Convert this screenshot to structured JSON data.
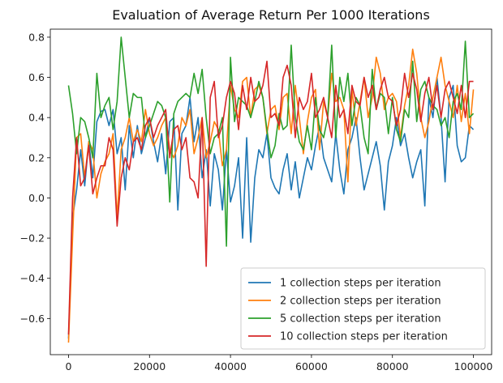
{
  "chart_data": {
    "type": "line",
    "title": "Evaluation of Average Return Per 1000 Iterations",
    "xlabel": "",
    "ylabel": "",
    "xlim": [
      -4500,
      104500
    ],
    "ylim": [
      -0.78,
      0.84
    ],
    "x_ticks": [
      0,
      20000,
      40000,
      60000,
      80000,
      100000
    ],
    "x_tick_labels": [
      "0",
      "20000",
      "40000",
      "60000",
      "80000",
      "100000"
    ],
    "y_ticks": [
      -0.6,
      -0.4,
      -0.2,
      0.0,
      0.2,
      0.4,
      0.6,
      0.8
    ],
    "y_tick_labels": [
      "−0.6",
      "−0.4",
      "−0.2",
      "0.0",
      "0.2",
      "0.4",
      "0.6",
      "0.8"
    ],
    "grid": false,
    "legend_position": "lower-right",
    "x_start": 0,
    "x_step": 1000,
    "series": [
      {
        "name": "1 collection steps per iteration",
        "color": "#1f77b4",
        "values": [
          -0.7,
          -0.1,
          0.04,
          0.24,
          0.06,
          0.28,
          0.1,
          0.38,
          0.43,
          0.44,
          0.36,
          0.44,
          0.22,
          0.3,
          0.04,
          0.36,
          0.2,
          0.36,
          0.22,
          0.3,
          0.4,
          0.28,
          0.18,
          0.32,
          0.12,
          0.38,
          0.4,
          -0.06,
          0.32,
          0.36,
          0.5,
          0.28,
          0.4,
          0.1,
          0.24,
          -0.04,
          0.22,
          0.14,
          -0.06,
          0.24,
          -0.02,
          0.06,
          0.2,
          -0.2,
          0.3,
          -0.22,
          0.1,
          0.24,
          0.2,
          0.32,
          0.1,
          0.05,
          0.02,
          0.14,
          0.22,
          0.04,
          0.18,
          0.0,
          0.1,
          0.2,
          0.14,
          0.26,
          0.36,
          0.2,
          0.14,
          0.08,
          0.32,
          0.14,
          0.02,
          0.24,
          0.3,
          0.4,
          0.2,
          0.04,
          0.12,
          0.2,
          0.28,
          0.16,
          -0.06,
          0.18,
          0.26,
          0.4,
          0.26,
          0.32,
          0.2,
          0.1,
          0.18,
          0.24,
          -0.04,
          0.5,
          0.4,
          0.6,
          0.4,
          0.08,
          0.5,
          0.56,
          0.26,
          0.18,
          0.2,
          0.36,
          0.34
        ]
      },
      {
        "name": "2 collection steps per iteration",
        "color": "#ff7f0e",
        "values": [
          -0.72,
          -0.2,
          0.3,
          0.32,
          0.1,
          0.28,
          0.24,
          0.0,
          0.12,
          0.18,
          0.22,
          0.32,
          -0.1,
          0.24,
          0.3,
          0.4,
          0.28,
          0.34,
          0.28,
          0.44,
          0.32,
          0.26,
          0.3,
          0.36,
          0.4,
          0.24,
          0.2,
          0.26,
          0.4,
          0.36,
          0.44,
          0.22,
          0.3,
          0.4,
          0.2,
          0.28,
          0.38,
          0.34,
          0.16,
          0.24,
          0.56,
          0.44,
          0.4,
          0.58,
          0.6,
          0.4,
          0.54,
          0.56,
          0.5,
          0.32,
          0.44,
          0.46,
          0.34,
          0.5,
          0.52,
          0.32,
          0.56,
          0.4,
          0.22,
          0.38,
          0.5,
          0.54,
          0.24,
          0.48,
          0.4,
          0.62,
          0.48,
          0.5,
          0.44,
          0.08,
          0.54,
          0.36,
          0.48,
          0.6,
          0.4,
          0.5,
          0.7,
          0.62,
          0.44,
          0.5,
          0.52,
          0.48,
          0.3,
          0.46,
          0.56,
          0.74,
          0.62,
          0.4,
          0.3,
          0.38,
          0.5,
          0.6,
          0.7,
          0.56,
          0.48,
          0.4,
          0.56,
          0.38,
          0.52,
          0.32,
          0.54
        ]
      },
      {
        "name": "5 collection steps per iteration",
        "color": "#2ca02c",
        "values": [
          0.56,
          0.42,
          0.22,
          0.4,
          0.38,
          0.3,
          0.2,
          0.62,
          0.4,
          0.46,
          0.5,
          0.34,
          0.48,
          0.8,
          0.6,
          0.4,
          0.52,
          0.5,
          0.5,
          0.3,
          0.36,
          0.42,
          0.48,
          0.46,
          0.4,
          -0.02,
          0.42,
          0.48,
          0.5,
          0.52,
          0.5,
          0.62,
          0.52,
          0.64,
          0.4,
          0.22,
          0.3,
          0.32,
          0.4,
          -0.24,
          0.7,
          0.38,
          0.5,
          0.48,
          0.46,
          0.4,
          0.48,
          0.58,
          0.5,
          0.34,
          0.2,
          0.26,
          0.42,
          0.34,
          0.36,
          0.76,
          0.4,
          0.28,
          0.24,
          0.36,
          0.24,
          0.5,
          0.34,
          0.3,
          0.4,
          0.76,
          0.3,
          0.6,
          0.48,
          0.62,
          0.36,
          0.5,
          0.46,
          0.3,
          0.22,
          0.64,
          0.44,
          0.52,
          0.5,
          0.32,
          0.5,
          0.34,
          0.28,
          0.44,
          0.4,
          0.68,
          0.38,
          0.54,
          0.58,
          0.5,
          0.46,
          0.44,
          0.36,
          0.4,
          0.3,
          0.48,
          0.52,
          0.44,
          0.78,
          0.4,
          0.42
        ]
      },
      {
        "name": "10 collection steps per iteration",
        "color": "#d62728",
        "values": [
          -0.68,
          0.0,
          0.3,
          0.06,
          0.1,
          0.26,
          0.02,
          0.1,
          0.16,
          0.16,
          0.3,
          0.24,
          -0.14,
          0.1,
          0.2,
          0.14,
          0.28,
          0.3,
          0.24,
          0.36,
          0.4,
          0.3,
          0.36,
          0.4,
          0.44,
          0.2,
          0.34,
          0.36,
          0.24,
          0.3,
          0.1,
          0.08,
          0.0,
          0.4,
          -0.34,
          0.5,
          0.58,
          0.3,
          0.36,
          0.5,
          0.58,
          0.52,
          0.34,
          0.56,
          0.44,
          0.6,
          0.48,
          0.5,
          0.56,
          0.68,
          0.4,
          0.42,
          0.36,
          0.6,
          0.66,
          0.56,
          0.3,
          0.5,
          0.44,
          0.48,
          0.62,
          0.4,
          0.44,
          0.5,
          0.4,
          0.3,
          0.56,
          0.4,
          0.44,
          0.32,
          0.56,
          0.48,
          0.46,
          0.6,
          0.5,
          0.56,
          0.44,
          0.54,
          0.6,
          0.5,
          0.48,
          0.36,
          0.44,
          0.62,
          0.5,
          0.62,
          0.54,
          0.38,
          0.52,
          0.6,
          0.44,
          0.56,
          0.4,
          0.54,
          0.58,
          0.5,
          0.42,
          0.56,
          0.4,
          0.58,
          0.58
        ]
      }
    ]
  }
}
